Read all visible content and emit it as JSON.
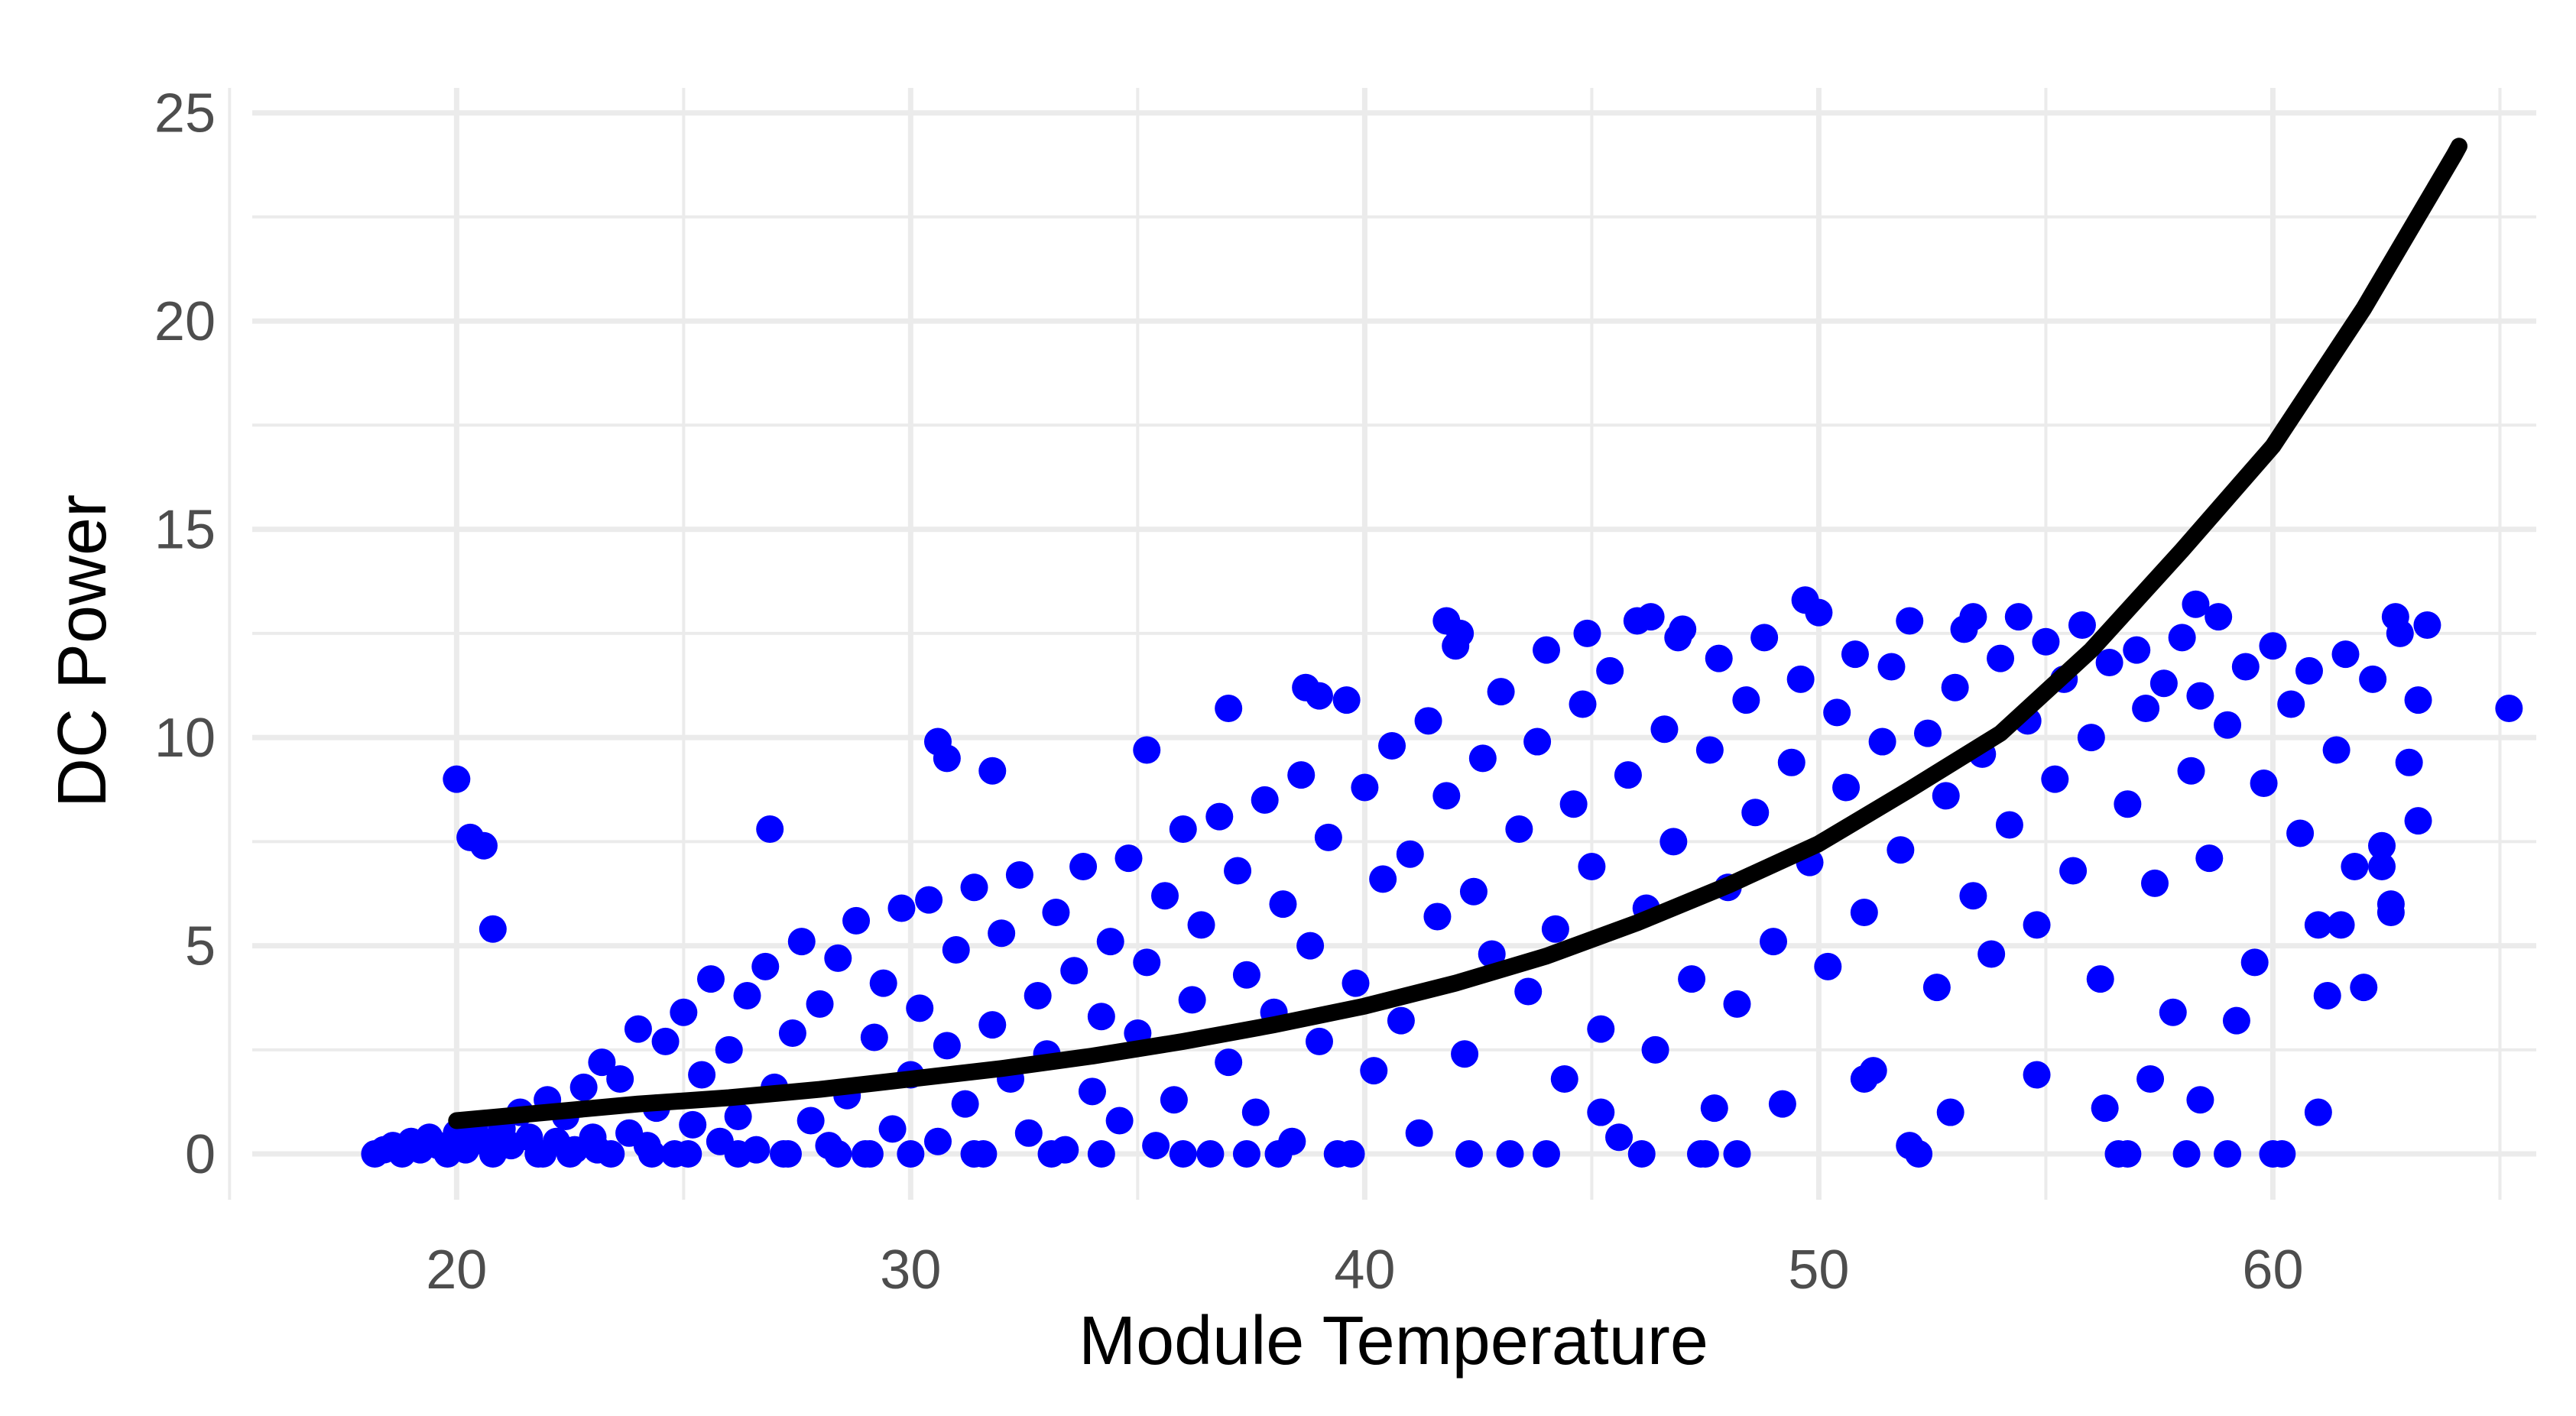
{
  "chart_data": {
    "type": "scatter",
    "title": "",
    "xlabel": "Module Temperature",
    "ylabel": "DC Power",
    "xlim": [
      15.5,
      65.8
    ],
    "ylim": [
      -1.1,
      25.6
    ],
    "x_ticks": [
      20,
      30,
      40,
      50,
      60
    ],
    "x_tick_labels": [
      "20",
      "30",
      "40",
      "50",
      "60"
    ],
    "y_ticks": [
      0,
      5,
      10,
      15,
      20,
      25
    ],
    "y_tick_labels": [
      "0",
      "5",
      "10",
      "15",
      "20",
      "25"
    ],
    "x_minor_ticks": [
      15,
      25,
      35,
      45,
      55,
      65
    ],
    "y_minor_ticks": [
      2.5,
      7.5,
      12.5,
      17.5,
      22.5
    ],
    "grid": true,
    "legend": "none",
    "point_color": "#0000ff",
    "line_color": "#000000",
    "grid_color": "#ebebeb",
    "series": [
      {
        "type": "scatter",
        "points": [
          [
            18.2,
            0.0
          ],
          [
            18.4,
            0.1
          ],
          [
            18.6,
            0.2
          ],
          [
            18.8,
            0.0
          ],
          [
            19.0,
            0.3
          ],
          [
            19.2,
            0.1
          ],
          [
            19.4,
            0.4
          ],
          [
            19.6,
            0.2
          ],
          [
            19.8,
            0.0
          ],
          [
            20.0,
            0.5
          ],
          [
            20.2,
            0.1
          ],
          [
            20.4,
            0.7
          ],
          [
            20.6,
            0.3
          ],
          [
            20.8,
            0.0
          ],
          [
            21.0,
            0.6
          ],
          [
            21.2,
            0.2
          ],
          [
            21.4,
            1.0
          ],
          [
            21.6,
            0.4
          ],
          [
            21.8,
            0.0
          ],
          [
            22.0,
            1.3
          ],
          [
            22.2,
            0.3
          ],
          [
            22.4,
            0.9
          ],
          [
            22.6,
            0.1
          ],
          [
            22.8,
            1.6
          ],
          [
            23.0,
            0.4
          ],
          [
            23.2,
            2.2
          ],
          [
            23.4,
            0.0
          ],
          [
            23.6,
            1.8
          ],
          [
            23.8,
            0.5
          ],
          [
            24.0,
            3.0
          ],
          [
            24.2,
            0.2
          ],
          [
            24.4,
            1.1
          ],
          [
            24.6,
            2.7
          ],
          [
            24.8,
            0.0
          ],
          [
            25.0,
            3.4
          ],
          [
            25.2,
            0.7
          ],
          [
            25.4,
            1.9
          ],
          [
            25.6,
            4.2
          ],
          [
            25.8,
            0.3
          ],
          [
            26.0,
            2.5
          ],
          [
            26.2,
            0.9
          ],
          [
            26.4,
            3.8
          ],
          [
            26.6,
            0.1
          ],
          [
            26.8,
            4.5
          ],
          [
            27.0,
            1.6
          ],
          [
            27.2,
            0.0
          ],
          [
            27.4,
            2.9
          ],
          [
            27.6,
            5.1
          ],
          [
            27.8,
            0.8
          ],
          [
            28.0,
            3.6
          ],
          [
            28.2,
            0.2
          ],
          [
            28.4,
            4.7
          ],
          [
            28.6,
            1.4
          ],
          [
            28.8,
            5.6
          ],
          [
            29.0,
            0.0
          ],
          [
            29.2,
            2.8
          ],
          [
            29.4,
            4.1
          ],
          [
            29.6,
            0.6
          ],
          [
            29.8,
            5.9
          ],
          [
            30.0,
            1.9
          ],
          [
            30.2,
            3.5
          ],
          [
            30.4,
            6.1
          ],
          [
            30.6,
            0.3
          ],
          [
            30.8,
            2.6
          ],
          [
            31.0,
            4.9
          ],
          [
            31.2,
            1.2
          ],
          [
            31.4,
            6.4
          ],
          [
            31.6,
            0.0
          ],
          [
            31.8,
            3.1
          ],
          [
            32.0,
            5.3
          ],
          [
            32.2,
            1.8
          ],
          [
            32.4,
            6.7
          ],
          [
            32.6,
            0.5
          ],
          [
            32.8,
            3.8
          ],
          [
            33.0,
            2.4
          ],
          [
            33.2,
            5.8
          ],
          [
            33.4,
            0.1
          ],
          [
            33.6,
            4.4
          ],
          [
            33.8,
            6.9
          ],
          [
            34.0,
            1.5
          ],
          [
            34.2,
            3.3
          ],
          [
            34.4,
            5.1
          ],
          [
            34.6,
            0.8
          ],
          [
            34.8,
            7.1
          ],
          [
            35.0,
            2.9
          ],
          [
            35.2,
            4.6
          ],
          [
            35.4,
            0.2
          ],
          [
            35.6,
            6.2
          ],
          [
            35.8,
            1.3
          ],
          [
            36.0,
            7.8
          ],
          [
            36.2,
            3.7
          ],
          [
            36.4,
            5.5
          ],
          [
            36.6,
            0.0
          ],
          [
            36.8,
            8.1
          ],
          [
            37.0,
            2.2
          ],
          [
            37.2,
            6.8
          ],
          [
            37.4,
            4.3
          ],
          [
            37.6,
            1.0
          ],
          [
            37.8,
            8.5
          ],
          [
            38.0,
            3.4
          ],
          [
            38.2,
            6.0
          ],
          [
            38.4,
            0.3
          ],
          [
            38.6,
            9.1
          ],
          [
            38.8,
            5.0
          ],
          [
            39.0,
            2.7
          ],
          [
            39.2,
            7.6
          ],
          [
            39.4,
            0.0
          ],
          [
            39.6,
            10.9
          ],
          [
            39.8,
            4.1
          ],
          [
            40.0,
            8.8
          ],
          [
            40.2,
            2.0
          ],
          [
            40.4,
            6.6
          ],
          [
            40.6,
            9.8
          ],
          [
            40.8,
            3.2
          ],
          [
            41.0,
            7.2
          ],
          [
            41.2,
            0.5
          ],
          [
            41.4,
            10.4
          ],
          [
            41.6,
            5.7
          ],
          [
            41.8,
            8.6
          ],
          [
            42.0,
            12.2
          ],
          [
            42.2,
            2.4
          ],
          [
            42.4,
            6.3
          ],
          [
            42.6,
            9.5
          ],
          [
            42.8,
            4.8
          ],
          [
            43.0,
            11.1
          ],
          [
            43.2,
            0.0
          ],
          [
            43.4,
            7.8
          ],
          [
            43.6,
            3.9
          ],
          [
            43.8,
            9.9
          ],
          [
            44.0,
            12.1
          ],
          [
            44.2,
            5.4
          ],
          [
            44.4,
            1.8
          ],
          [
            44.6,
            8.4
          ],
          [
            44.8,
            10.8
          ],
          [
            45.0,
            6.9
          ],
          [
            45.2,
            3.0
          ],
          [
            45.4,
            11.6
          ],
          [
            45.6,
            0.4
          ],
          [
            45.8,
            9.1
          ],
          [
            46.0,
            12.8
          ],
          [
            46.2,
            5.9
          ],
          [
            46.4,
            2.5
          ],
          [
            46.6,
            10.2
          ],
          [
            46.8,
            7.5
          ],
          [
            47.0,
            12.6
          ],
          [
            47.2,
            4.2
          ],
          [
            47.4,
            0.0
          ],
          [
            47.6,
            9.7
          ],
          [
            47.8,
            11.9
          ],
          [
            48.0,
            6.4
          ],
          [
            48.2,
            3.6
          ],
          [
            48.4,
            10.9
          ],
          [
            48.6,
            8.2
          ],
          [
            48.8,
            12.4
          ],
          [
            49.0,
            5.1
          ],
          [
            49.2,
            1.2
          ],
          [
            49.4,
            9.4
          ],
          [
            49.6,
            11.4
          ],
          [
            49.8,
            7.0
          ],
          [
            50.0,
            13.0
          ],
          [
            50.2,
            4.5
          ],
          [
            50.4,
            10.6
          ],
          [
            50.6,
            8.8
          ],
          [
            50.8,
            12.0
          ],
          [
            51.0,
            5.8
          ],
          [
            51.2,
            2.0
          ],
          [
            51.4,
            9.9
          ],
          [
            51.6,
            11.7
          ],
          [
            51.8,
            7.3
          ],
          [
            52.0,
            12.8
          ],
          [
            52.2,
            0.0
          ],
          [
            52.4,
            10.1
          ],
          [
            52.6,
            4.0
          ],
          [
            52.8,
            8.6
          ],
          [
            53.0,
            11.2
          ],
          [
            53.2,
            12.6
          ],
          [
            53.4,
            6.2
          ],
          [
            53.6,
            9.6
          ],
          [
            53.8,
            4.8
          ],
          [
            54.0,
            11.9
          ],
          [
            54.2,
            7.9
          ],
          [
            54.4,
            12.9
          ],
          [
            54.6,
            10.4
          ],
          [
            54.8,
            5.5
          ],
          [
            55.0,
            12.3
          ],
          [
            55.2,
            9.0
          ],
          [
            55.4,
            11.4
          ],
          [
            55.6,
            6.8
          ],
          [
            55.8,
            12.7
          ],
          [
            56.0,
            10.0
          ],
          [
            56.2,
            4.2
          ],
          [
            56.4,
            11.8
          ],
          [
            56.6,
            0.0
          ],
          [
            56.8,
            8.4
          ],
          [
            57.0,
            12.1
          ],
          [
            57.2,
            10.7
          ],
          [
            57.4,
            6.5
          ],
          [
            57.6,
            11.3
          ],
          [
            57.8,
            3.4
          ],
          [
            58.0,
            12.4
          ],
          [
            58.2,
            9.2
          ],
          [
            58.4,
            11.0
          ],
          [
            58.6,
            7.1
          ],
          [
            58.8,
            12.9
          ],
          [
            59.0,
            10.3
          ],
          [
            59.2,
            3.2
          ],
          [
            59.4,
            11.7
          ],
          [
            59.6,
            4.6
          ],
          [
            59.8,
            8.9
          ],
          [
            60.0,
            12.2
          ],
          [
            60.2,
            0.0
          ],
          [
            60.4,
            10.8
          ],
          [
            60.6,
            7.7
          ],
          [
            60.8,
            11.6
          ],
          [
            61.0,
            5.5
          ],
          [
            61.2,
            3.8
          ],
          [
            61.4,
            9.7
          ],
          [
            61.6,
            12.0
          ],
          [
            61.8,
            6.9
          ],
          [
            62.0,
            4.0
          ],
          [
            62.2,
            11.4
          ],
          [
            62.4,
            7.4
          ],
          [
            62.6,
            5.8
          ],
          [
            62.8,
            12.5
          ],
          [
            63.0,
            9.4
          ],
          [
            63.2,
            10.9
          ],
          [
            63.4,
            12.7
          ],
          [
            65.2,
            10.7
          ],
          [
            20.0,
            9.0
          ],
          [
            20.3,
            7.6
          ],
          [
            20.6,
            7.4
          ],
          [
            20.8,
            5.4
          ],
          [
            26.9,
            7.8
          ],
          [
            30.6,
            9.9
          ],
          [
            30.8,
            9.5
          ],
          [
            31.8,
            9.2
          ],
          [
            35.2,
            9.7
          ],
          [
            37.0,
            10.7
          ],
          [
            38.7,
            11.2
          ],
          [
            39.0,
            11.0
          ],
          [
            41.8,
            12.8
          ],
          [
            42.1,
            12.5
          ],
          [
            44.9,
            12.5
          ],
          [
            46.3,
            12.9
          ],
          [
            46.9,
            12.4
          ],
          [
            49.7,
            13.3
          ],
          [
            53.4,
            12.9
          ],
          [
            58.3,
            13.2
          ],
          [
            62.7,
            12.9
          ],
          [
            21.9,
            0.0
          ],
          [
            22.5,
            0.0
          ],
          [
            23.1,
            0.1
          ],
          [
            24.3,
            0.0
          ],
          [
            25.1,
            0.0
          ],
          [
            26.2,
            0.0
          ],
          [
            27.3,
            0.0
          ],
          [
            28.4,
            0.0
          ],
          [
            29.1,
            0.0
          ],
          [
            30.0,
            0.0
          ],
          [
            31.4,
            0.0
          ],
          [
            33.1,
            0.0
          ],
          [
            34.2,
            0.0
          ],
          [
            36.0,
            0.0
          ],
          [
            37.4,
            0.0
          ],
          [
            38.1,
            0.0
          ],
          [
            39.7,
            0.0
          ],
          [
            42.3,
            0.0
          ],
          [
            44.0,
            0.0
          ],
          [
            46.1,
            0.0
          ],
          [
            47.5,
            0.0
          ],
          [
            48.2,
            0.0
          ],
          [
            52.0,
            0.2
          ],
          [
            56.8,
            0.0
          ],
          [
            58.1,
            0.0
          ],
          [
            59.0,
            0.0
          ],
          [
            60.0,
            0.0
          ],
          [
            45.2,
            1.0
          ],
          [
            47.7,
            1.1
          ],
          [
            51.0,
            1.8
          ],
          [
            52.9,
            1.0
          ],
          [
            54.8,
            1.9
          ],
          [
            56.3,
            1.1
          ],
          [
            57.3,
            1.8
          ],
          [
            58.4,
            1.3
          ],
          [
            61.0,
            1.0
          ],
          [
            61.5,
            5.5
          ],
          [
            62.6,
            6.0
          ],
          [
            62.4,
            6.9
          ],
          [
            63.2,
            8.0
          ]
        ]
      },
      {
        "type": "line",
        "points": [
          [
            20,
            0.8
          ],
          [
            22,
            1.0
          ],
          [
            24,
            1.2
          ],
          [
            26,
            1.35
          ],
          [
            28,
            1.55
          ],
          [
            30,
            1.8
          ],
          [
            32,
            2.05
          ],
          [
            34,
            2.35
          ],
          [
            36,
            2.7
          ],
          [
            38,
            3.1
          ],
          [
            40,
            3.55
          ],
          [
            42,
            4.1
          ],
          [
            44,
            4.75
          ],
          [
            46,
            5.55
          ],
          [
            48,
            6.45
          ],
          [
            50,
            7.45
          ],
          [
            52,
            8.75
          ],
          [
            54,
            10.1
          ],
          [
            56,
            12.1
          ],
          [
            58,
            14.5
          ],
          [
            60,
            17.0
          ],
          [
            62,
            20.3
          ],
          [
            64,
            24.0
          ],
          [
            64.1,
            24.2
          ]
        ]
      }
    ]
  }
}
